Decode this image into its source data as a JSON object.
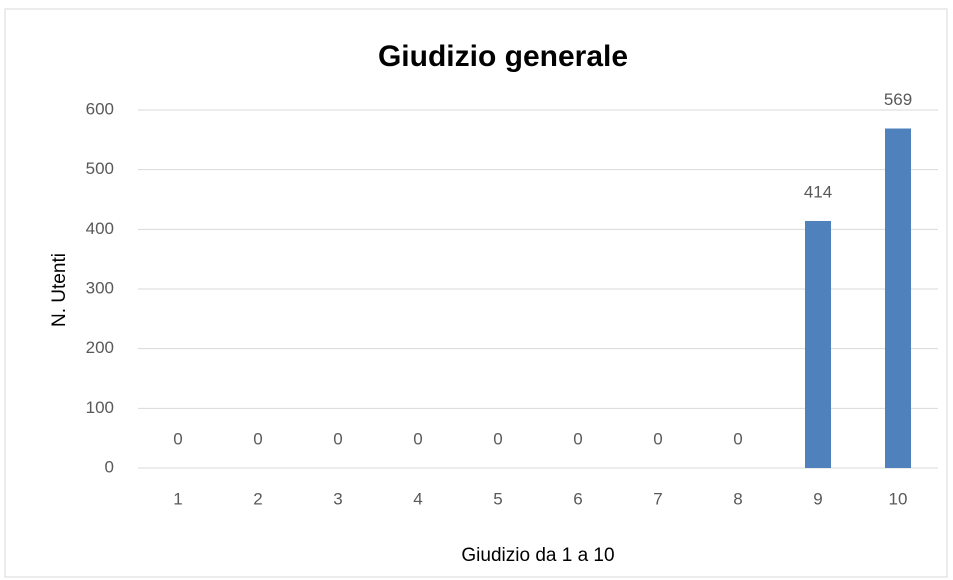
{
  "chart_data": {
    "type": "bar",
    "title": "Giudizio generale",
    "x_label": "Giudizio da 1 a 10",
    "y_label": "N. Utenti",
    "categories": [
      "1",
      "2",
      "3",
      "4",
      "5",
      "6",
      "7",
      "8",
      "9",
      "10"
    ],
    "values": [
      0,
      0,
      0,
      0,
      0,
      0,
      0,
      0,
      414,
      569
    ],
    "color": "#4f81bd",
    "ylim": [
      0,
      600
    ],
    "yticks": [
      0,
      100,
      200,
      300,
      400,
      500,
      600
    ],
    "grid": true,
    "data_labels": true
  }
}
